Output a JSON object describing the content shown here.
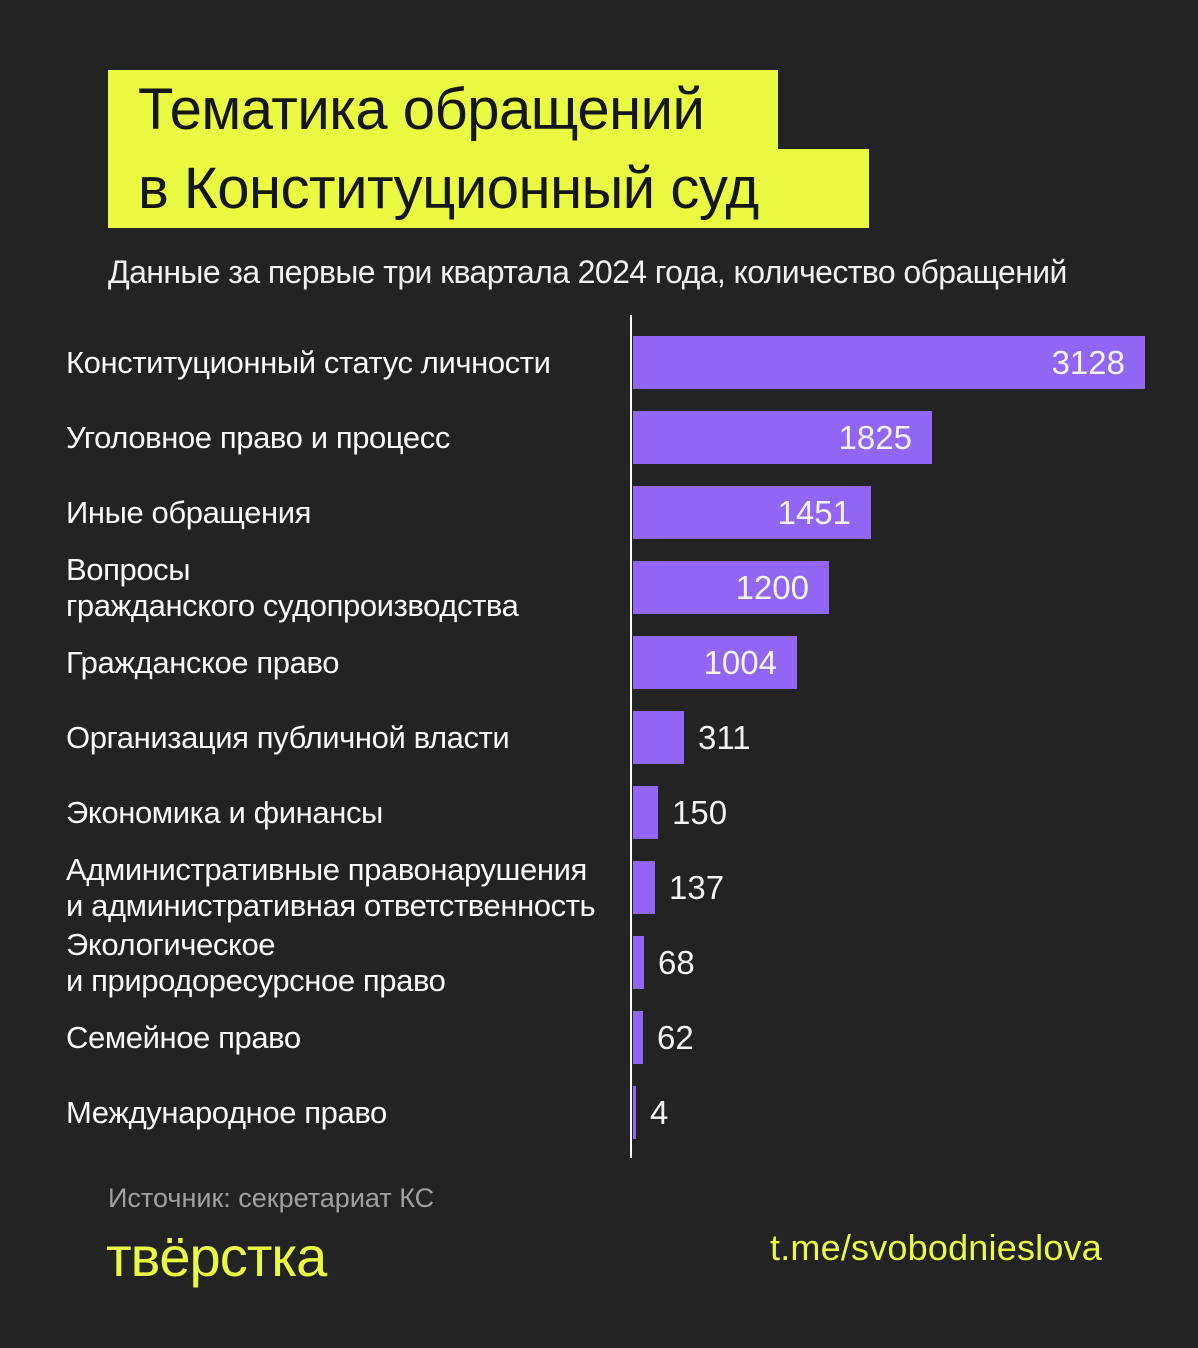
{
  "header": {
    "title_line1": "Тематика обращений",
    "title_line2": "в Конституционный суд",
    "subtitle": "Данные за первые три квартала 2024 года, количество обращений"
  },
  "chart_data": {
    "type": "bar",
    "orientation": "horizontal",
    "title": "Тематика обращений в Конституционный суд",
    "subtitle": "Данные за первые три квартала 2024 года, количество обращений",
    "categories": [
      "Конституционный статус личности",
      "Уголовное право и процесс",
      "Иные обращения",
      "Вопросы гражданского судопроизводства",
      "Гражданское право",
      "Организация публичной власти",
      "Экономика и финансы",
      "Административные правонарушения и административная ответственность",
      "Экологическое и природоресурсное право",
      "Семейное право",
      "Международное право"
    ],
    "label_lines": [
      [
        "Конституционный статус личности"
      ],
      [
        "Уголовное право и процесс"
      ],
      [
        "Иные обращения"
      ],
      [
        "Вопросы",
        "гражданского судопроизводства"
      ],
      [
        "Гражданское право"
      ],
      [
        "Организация публичной власти"
      ],
      [
        "Экономика и финансы"
      ],
      [
        "Административные правонарушения",
        "и административная ответственность"
      ],
      [
        "Экологическое",
        "и природоресурсное право"
      ],
      [
        "Семейное право"
      ],
      [
        "Международное право"
      ]
    ],
    "values": [
      3128,
      1825,
      1451,
      1200,
      1004,
      311,
      150,
      137,
      68,
      62,
      4
    ],
    "xlim": [
      0,
      3128
    ],
    "grid": false,
    "legend": false,
    "value_labels": "inside bar for values >= 1000, outside right otherwise"
  },
  "footer": {
    "source": "Источник: секретариат КС",
    "logo": "твёрстка",
    "link": "t.me/svobodnieslova"
  },
  "colors": {
    "background": "#232323",
    "highlight_yellow": "#eafa43",
    "bar_purple": "#9266f5",
    "axis_line": "#fbfbf5",
    "label_text": "#fafafa",
    "value_text": "#f3f3f3",
    "title_text": "#161616",
    "source_text": "#a0a0a3"
  }
}
